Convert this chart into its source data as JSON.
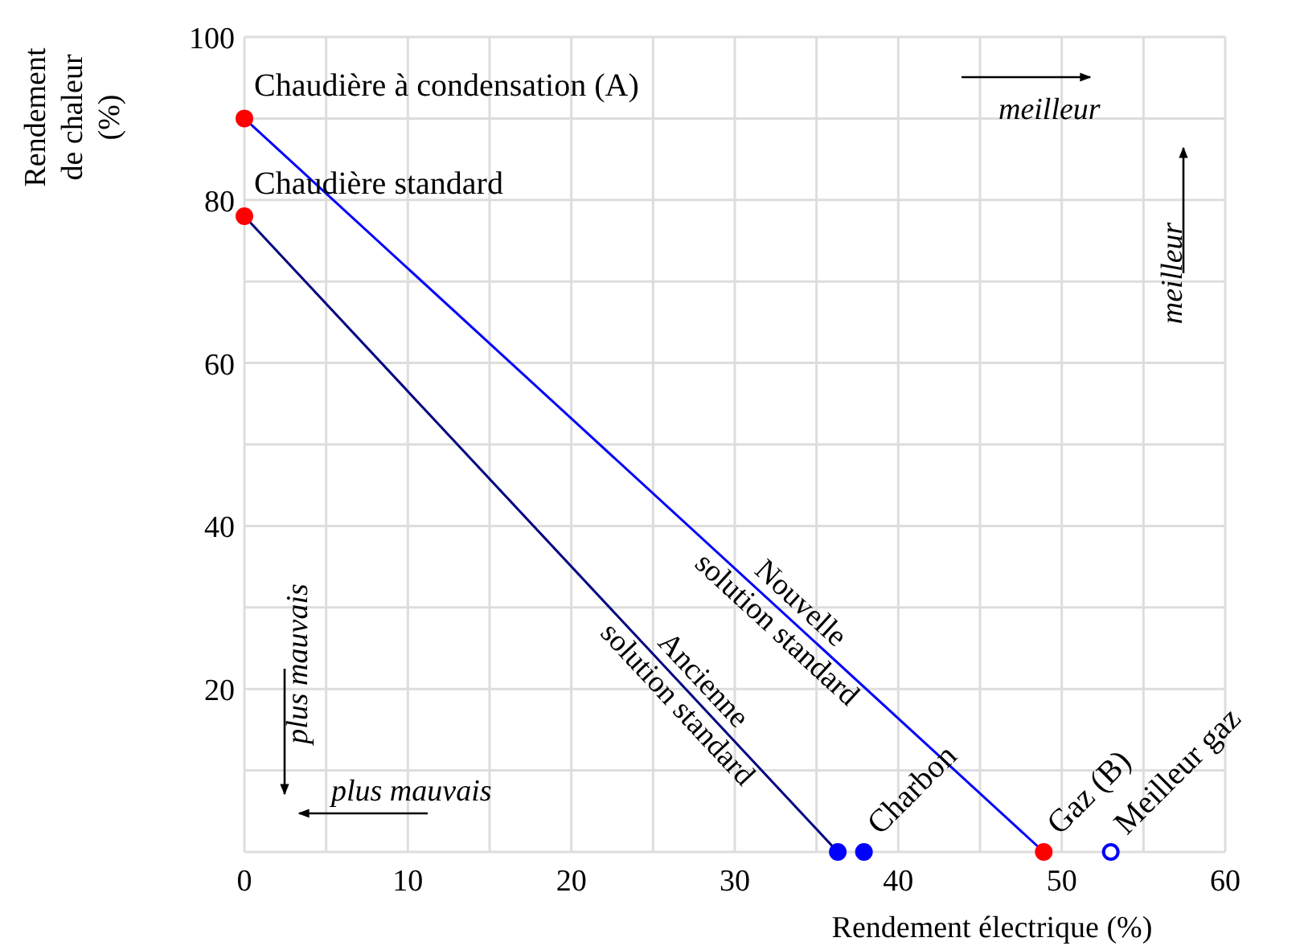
{
  "chart_data": {
    "type": "line",
    "xlabel": "Rendement électrique (%)",
    "ylabel": "Rendement de chaleur (%)",
    "xlim": [
      0,
      60
    ],
    "ylim": [
      0,
      100
    ],
    "xticks": [
      0,
      {
        "value": 5,
        "label": null
      },
      10,
      {
        "value": 15,
        "label": null
      },
      20,
      {
        "value": 25,
        "label": null
      },
      30,
      {
        "value": 35,
        "label": null
      },
      40,
      {
        "value": 45,
        "label": null
      },
      50,
      {
        "value": 55,
        "label": null
      },
      60
    ],
    "yticks": [
      {
        "value": 0,
        "label": null
      },
      {
        "value": 10,
        "label": null
      },
      20,
      {
        "value": 30,
        "label": null
      },
      40,
      {
        "value": 50,
        "label": null
      },
      60,
      {
        "value": 70,
        "label": null
      },
      80,
      {
        "value": 90,
        "label": null
      },
      100
    ],
    "grid": true,
    "line_style": "solid",
    "series": [
      {
        "name": "Ancienne solution standard",
        "color": "#000080",
        "x": [
          0,
          36.3
        ],
        "values": [
          78,
          0
        ],
        "marker": "none"
      },
      {
        "name": "Nouvelle solution standard",
        "color": "#0000ff",
        "x": [
          0,
          48.9
        ],
        "values": [
          90,
          0
        ],
        "marker": "none"
      },
      {
        "type": "scatter",
        "color": "#ff0000",
        "x": [
          0,
          0,
          48.9
        ],
        "values": [
          90,
          78,
          0
        ],
        "marker": "circle"
      },
      {
        "type": "scatter",
        "color": "#0000ff",
        "x": [
          36.3,
          37.9
        ],
        "values": [
          0,
          0
        ],
        "marker": "circle"
      },
      {
        "type": "scatter",
        "color": "#0000ff",
        "x": [
          53
        ],
        "values": [
          0
        ],
        "marker": "circle-open"
      }
    ],
    "annotations": [
      "meilleur",
      "meilleur",
      "plus mauvais",
      "plus mauvais",
      {
        "text": "Chaudière à condensation (A)",
        "x": 0,
        "y": 90
      },
      {
        "text": "Chaudière standard",
        "x": 0,
        "y": 78
      },
      {
        "text": "Charbon",
        "x": 37.9,
        "y": 0
      },
      {
        "text": "Gaz (B)",
        "x": 48.9,
        "y": 0
      },
      {
        "text": "Meilleur gaz",
        "x": 53,
        "y": 0
      }
    ]
  }
}
